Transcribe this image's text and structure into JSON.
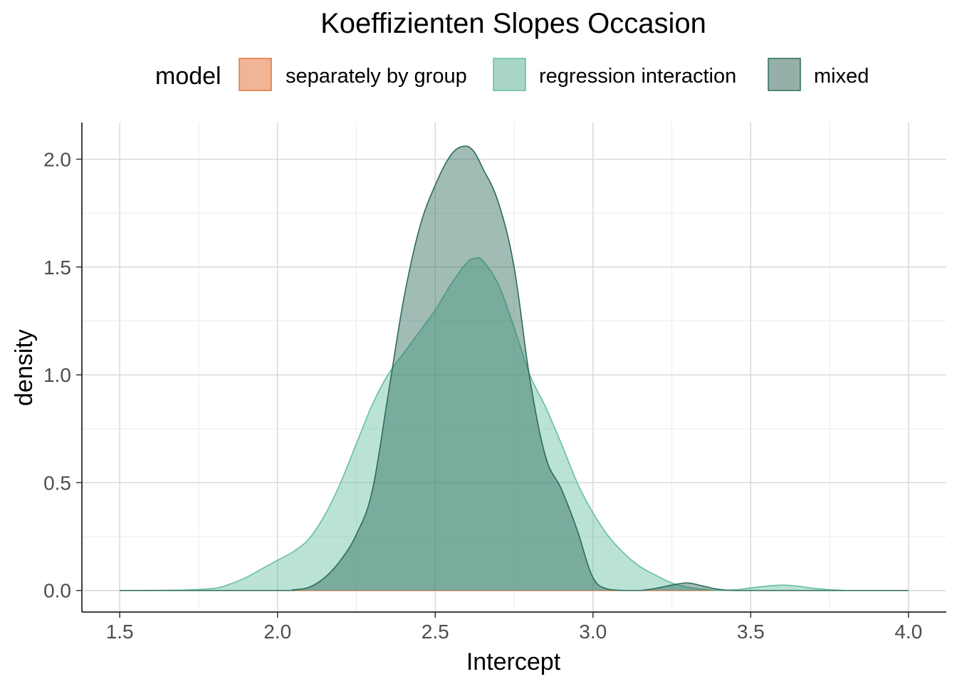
{
  "chart_data": {
    "type": "area",
    "title": "Koeffizienten Slopes Occasion",
    "xlabel": "Intercept",
    "ylabel": "density",
    "xlim": [
      1.38,
      4.12
    ],
    "ylim": [
      -0.1,
      2.17
    ],
    "x_ticks": [
      1.5,
      2.0,
      2.5,
      3.0,
      3.5,
      4.0
    ],
    "x_tick_labels": [
      "1.5",
      "2.0",
      "2.5",
      "3.0",
      "3.5",
      "4.0"
    ],
    "y_ticks": [
      0.0,
      0.5,
      1.0,
      1.5,
      2.0
    ],
    "y_tick_labels": [
      "0.0",
      "0.5",
      "1.0",
      "1.5",
      "2.0"
    ],
    "grid": true,
    "legend": {
      "title": "model",
      "position": "top",
      "entries": [
        {
          "label": "separately by group",
          "fill": "#f0b496",
          "stroke": "#e0763e"
        },
        {
          "label": "regression interaction",
          "fill": "#a9d6c8",
          "stroke": "#66bfa2"
        },
        {
          "label": "mixed",
          "fill": "#95b0a8",
          "stroke": "#2d6b5c"
        }
      ]
    },
    "series": [
      {
        "name": "separately by group",
        "fill": "#e0763e",
        "stroke": "#e0763e",
        "x": [
          1.5,
          4.0
        ],
        "y": [
          0.0,
          0.0
        ]
      },
      {
        "name": "regression interaction",
        "fill": "#66bfa2",
        "stroke": "#66bfa2",
        "x": [
          1.5,
          1.7,
          1.8,
          1.85,
          1.9,
          1.95,
          2.0,
          2.05,
          2.1,
          2.15,
          2.2,
          2.25,
          2.3,
          2.35,
          2.4,
          2.45,
          2.5,
          2.55,
          2.6,
          2.625,
          2.65,
          2.7,
          2.75,
          2.8,
          2.85,
          2.9,
          2.95,
          3.0,
          3.05,
          3.1,
          3.15,
          3.2,
          3.25,
          3.3,
          3.35,
          3.4,
          3.45,
          3.5,
          3.55,
          3.6,
          3.65,
          3.7,
          3.8,
          4.0
        ],
        "y": [
          0.0,
          0.002,
          0.01,
          0.03,
          0.06,
          0.1,
          0.14,
          0.18,
          0.24,
          0.35,
          0.5,
          0.68,
          0.86,
          1.0,
          1.1,
          1.2,
          1.3,
          1.42,
          1.52,
          1.54,
          1.53,
          1.42,
          1.22,
          1.0,
          0.85,
          0.68,
          0.5,
          0.36,
          0.25,
          0.17,
          0.11,
          0.07,
          0.035,
          0.015,
          0.005,
          0.0,
          0.003,
          0.012,
          0.02,
          0.025,
          0.02,
          0.01,
          0.0,
          0.0
        ]
      },
      {
        "name": "mixed",
        "fill": "#2d6b5c",
        "stroke": "#2d6b5c",
        "x": [
          1.5,
          2.0,
          2.05,
          2.1,
          2.15,
          2.2,
          2.25,
          2.3,
          2.35,
          2.4,
          2.45,
          2.5,
          2.55,
          2.59,
          2.62,
          2.65,
          2.7,
          2.75,
          2.8,
          2.85,
          2.9,
          2.95,
          3.0,
          3.05,
          3.1,
          3.15,
          3.2,
          3.25,
          3.3,
          3.35,
          3.4,
          3.45,
          3.5,
          4.0
        ],
        "y": [
          0.0,
          0.0,
          0.003,
          0.015,
          0.06,
          0.14,
          0.26,
          0.46,
          0.9,
          1.35,
          1.68,
          1.88,
          2.02,
          2.06,
          2.04,
          1.96,
          1.8,
          1.5,
          0.98,
          0.62,
          0.47,
          0.28,
          0.06,
          0.005,
          0.0,
          0.0,
          0.01,
          0.025,
          0.035,
          0.02,
          0.005,
          0.0,
          0.0,
          0.0
        ]
      }
    ]
  }
}
